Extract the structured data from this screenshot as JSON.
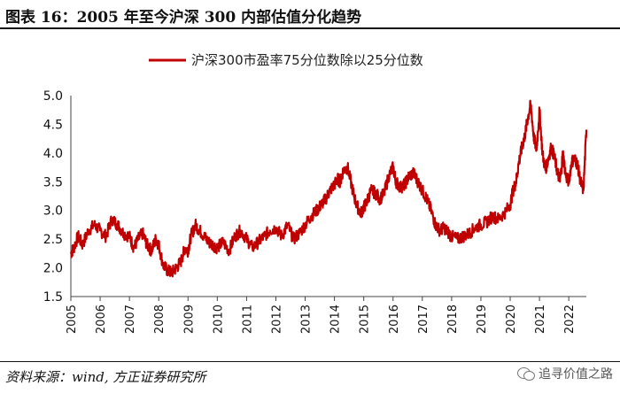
{
  "title": "图表 16：2005 年至今沪深 300 内部估值分化趋势",
  "source": "资料来源：wind, 方正证券研究所",
  "watermark": "追寻价值之路",
  "watermark_icon": "wechat-icon",
  "chart_data": {
    "type": "line",
    "title": "图表 16：2005 年至今沪深 300 内部估值分化趋势",
    "xlabel": "",
    "ylabel": "",
    "ylim": [
      1.5,
      5.0
    ],
    "yticks": [
      "1.5",
      "2.0",
      "2.5",
      "3.0",
      "3.5",
      "4.0",
      "4.5",
      "5.0"
    ],
    "xticks": [
      "2005",
      "2006",
      "2007",
      "2008",
      "2009",
      "2010",
      "2011",
      "2012",
      "2013",
      "2014",
      "2015",
      "2016",
      "2017",
      "2018",
      "2019",
      "2020",
      "2021",
      "2022"
    ],
    "xlim": [
      2005.0,
      2022.6
    ],
    "grid": false,
    "legend_position": "top-center",
    "series": [
      {
        "name": "沪深300市盈率75分位数除以25分位数",
        "color": "#c00000",
        "x": [
          2005.0,
          2005.1,
          2005.25,
          2005.4,
          2005.6,
          2005.8,
          2006.0,
          2006.2,
          2006.4,
          2006.6,
          2006.8,
          2007.0,
          2007.15,
          2007.3,
          2007.45,
          2007.6,
          2007.75,
          2007.9,
          2008.0,
          2008.15,
          2008.3,
          2008.45,
          2008.6,
          2008.75,
          2008.9,
          2009.0,
          2009.1,
          2009.25,
          2009.4,
          2009.55,
          2009.7,
          2009.85,
          2010.0,
          2010.2,
          2010.4,
          2010.6,
          2010.8,
          2011.0,
          2011.2,
          2011.4,
          2011.6,
          2011.8,
          2012.0,
          2012.2,
          2012.4,
          2012.6,
          2012.8,
          2013.0,
          2013.2,
          2013.4,
          2013.55,
          2013.7,
          2013.85,
          2014.0,
          2014.1,
          2014.2,
          2014.3,
          2014.45,
          2014.6,
          2014.75,
          2014.9,
          2015.0,
          2015.1,
          2015.25,
          2015.4,
          2015.55,
          2015.7,
          2015.85,
          2016.0,
          2016.1,
          2016.25,
          2016.4,
          2016.55,
          2016.7,
          2016.85,
          2017.0,
          2017.15,
          2017.3,
          2017.45,
          2017.6,
          2017.75,
          2017.9,
          2018.0,
          2018.2,
          2018.4,
          2018.6,
          2018.8,
          2019.0,
          2019.2,
          2019.4,
          2019.6,
          2019.8,
          2020.0,
          2020.1,
          2020.2,
          2020.3,
          2020.4,
          2020.5,
          2020.6,
          2020.7,
          2020.8,
          2020.9,
          2021.0,
          2021.1,
          2021.2,
          2021.3,
          2021.4,
          2021.5,
          2021.6,
          2021.7,
          2021.8,
          2021.9,
          2022.0,
          2022.1,
          2022.2,
          2022.3,
          2022.4,
          2022.5,
          2022.6
        ],
        "values": [
          2.25,
          2.35,
          2.55,
          2.4,
          2.65,
          2.75,
          2.65,
          2.55,
          2.85,
          2.75,
          2.6,
          2.55,
          2.35,
          2.5,
          2.6,
          2.4,
          2.3,
          2.5,
          2.4,
          2.05,
          1.95,
          1.92,
          2.0,
          2.1,
          2.35,
          2.3,
          2.55,
          2.75,
          2.65,
          2.55,
          2.45,
          2.4,
          2.35,
          2.45,
          2.3,
          2.55,
          2.65,
          2.5,
          2.35,
          2.45,
          2.55,
          2.65,
          2.7,
          2.55,
          2.75,
          2.5,
          2.6,
          2.75,
          2.9,
          3.0,
          3.1,
          3.2,
          3.35,
          3.45,
          3.55,
          3.5,
          3.7,
          3.75,
          3.4,
          3.1,
          2.95,
          3.05,
          3.15,
          3.35,
          3.3,
          3.2,
          3.3,
          3.6,
          3.75,
          3.5,
          3.4,
          3.45,
          3.6,
          3.65,
          3.5,
          3.35,
          3.2,
          3.0,
          2.75,
          2.65,
          2.7,
          2.6,
          2.55,
          2.5,
          2.55,
          2.6,
          2.7,
          2.75,
          2.8,
          2.9,
          2.85,
          2.95,
          3.1,
          3.35,
          3.5,
          3.85,
          4.1,
          4.3,
          4.6,
          4.85,
          4.3,
          4.05,
          4.75,
          4.0,
          3.7,
          3.9,
          4.1,
          3.95,
          3.7,
          3.5,
          4.0,
          3.6,
          3.5,
          3.85,
          3.9,
          3.8,
          3.5,
          3.35,
          4.4
        ]
      }
    ]
  }
}
